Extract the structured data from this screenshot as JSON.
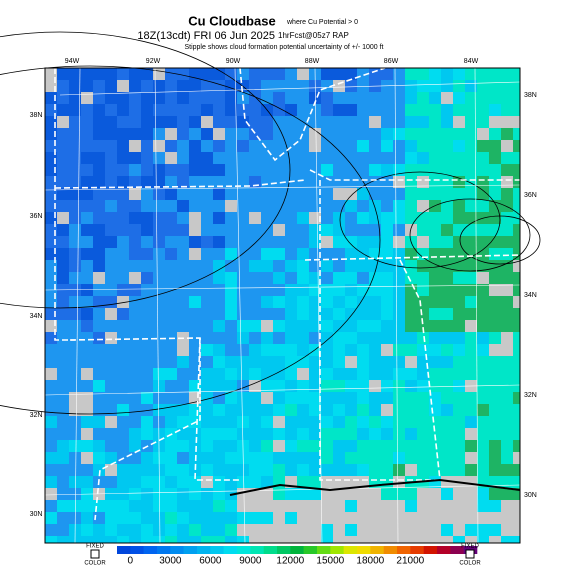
{
  "header": {
    "title": "Cu Cloudbase",
    "title_note": "where Cu Potential > 0",
    "valid": "18Z(13cdt) FRI 06 Jun 2025",
    "forecast": "1hrFcst@05z7 RAP",
    "subtitle": "Stipple shows cloud formation potential uncertainty of +/- 1000 ft"
  },
  "map": {
    "lon_labels": [
      "94W",
      "92W",
      "90W",
      "88W",
      "86W",
      "84W"
    ],
    "lat_labels_right": [
      "38N",
      "36N",
      "34N",
      "32N",
      "30N"
    ],
    "lat_labels_left": [
      "38N",
      "36N",
      "34N",
      "32N",
      "30N"
    ]
  },
  "legend": {
    "left_button": [
      "FIXED",
      "COLOR"
    ],
    "right_button": [
      "FIXED",
      "COLOR"
    ],
    "labels": [
      "0",
      "3000",
      "6000",
      "9000",
      "12000",
      "15000",
      "18000",
      "21000"
    ],
    "colors": [
      "#0046dc",
      "#0050e6",
      "#0064f0",
      "#0078f0",
      "#008cf0",
      "#00a0f0",
      "#00b4f0",
      "#00c8f0",
      "#00dcf0",
      "#00e6dc",
      "#00e6b4",
      "#00dc8c",
      "#00c864",
      "#00b43c",
      "#28c828",
      "#64dc14",
      "#a0e600",
      "#dce600",
      "#f0dc00",
      "#f0b400",
      "#f08c00",
      "#f06400",
      "#e63c00",
      "#d21400",
      "#b40028",
      "#8c0050",
      "#640078"
    ]
  }
}
